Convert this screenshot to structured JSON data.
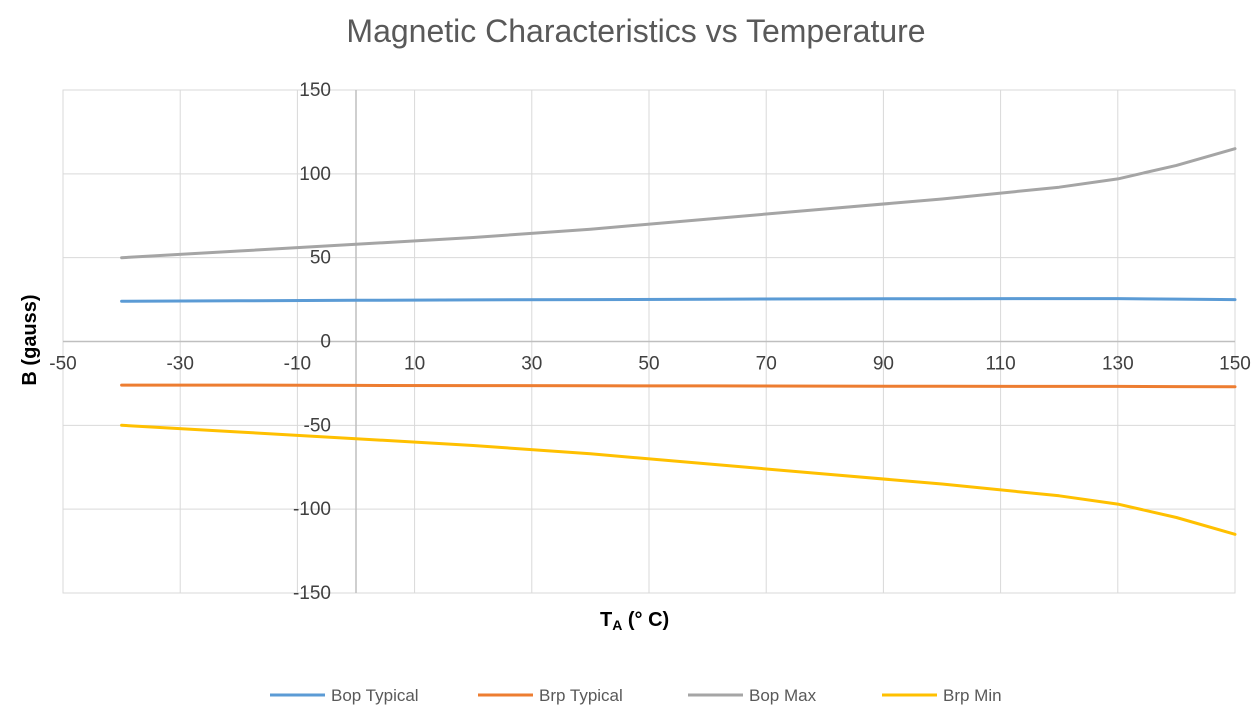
{
  "chart_data": {
    "type": "line",
    "title": "Magnetic Characteristics vs Temperature",
    "xlabel_main": "T",
    "xlabel_sub": "A",
    "xlabel_unit": " (°  C)",
    "ylabel": "B (gauss)",
    "xlim": [
      -50,
      150
    ],
    "ylim": [
      -150,
      150
    ],
    "x_ticks": [
      -50,
      -30,
      -10,
      10,
      30,
      50,
      70,
      90,
      110,
      130,
      150
    ],
    "y_ticks": [
      150,
      100,
      50,
      0,
      -50,
      -100,
      -150
    ],
    "grid": true,
    "legend_position": "bottom",
    "x": [
      -40,
      -20,
      0,
      20,
      40,
      60,
      80,
      100,
      120,
      130,
      140,
      150
    ],
    "series": [
      {
        "name": "Bop Typical",
        "color": "#5B9BD5",
        "values": [
          24,
          24.3,
          24.6,
          24.8,
          25,
          25.2,
          25.4,
          25.5,
          25.6,
          25.6,
          25.3,
          25
        ]
      },
      {
        "name": "Brp Typical",
        "color": "#ED7D31",
        "values": [
          -26,
          -26,
          -26.2,
          -26.3,
          -26.4,
          -26.5,
          -26.6,
          -26.7,
          -26.8,
          -26.8,
          -26.9,
          -27
        ]
      },
      {
        "name": "Bop Max",
        "color": "#A5A5A5",
        "values": [
          50,
          54,
          58,
          62,
          67,
          73,
          79,
          85,
          92,
          97,
          105,
          115
        ]
      },
      {
        "name": "Brp Min",
        "color": "#FFC000",
        "values": [
          -50,
          -54,
          -58,
          -62,
          -67,
          -73,
          -79,
          -85,
          -92,
          -97,
          -105,
          -115
        ]
      }
    ]
  }
}
